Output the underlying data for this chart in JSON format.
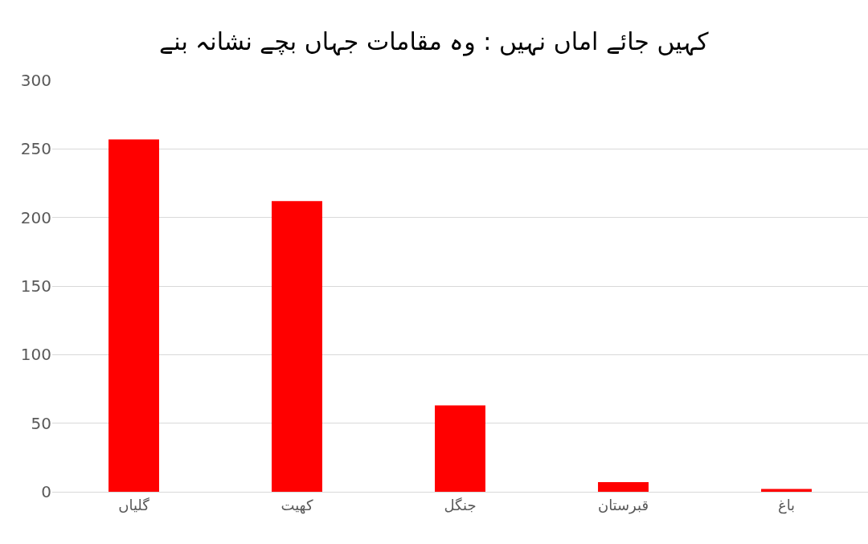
{
  "chart_data": {
    "type": "bar",
    "title": "کہیں جائے اماں نہیں : وہ مقامات جہاں بچے نشانہ بنے",
    "categories": [
      "گلیاں",
      "کھیت",
      "جنگل",
      "قبرستان",
      "باغ"
    ],
    "values": [
      257,
      212,
      63,
      7,
      2
    ],
    "color": "#ff0000",
    "ylim": [
      0,
      300
    ],
    "yticks": [
      0,
      50,
      100,
      150,
      200,
      250,
      300
    ],
    "grid": "y"
  }
}
